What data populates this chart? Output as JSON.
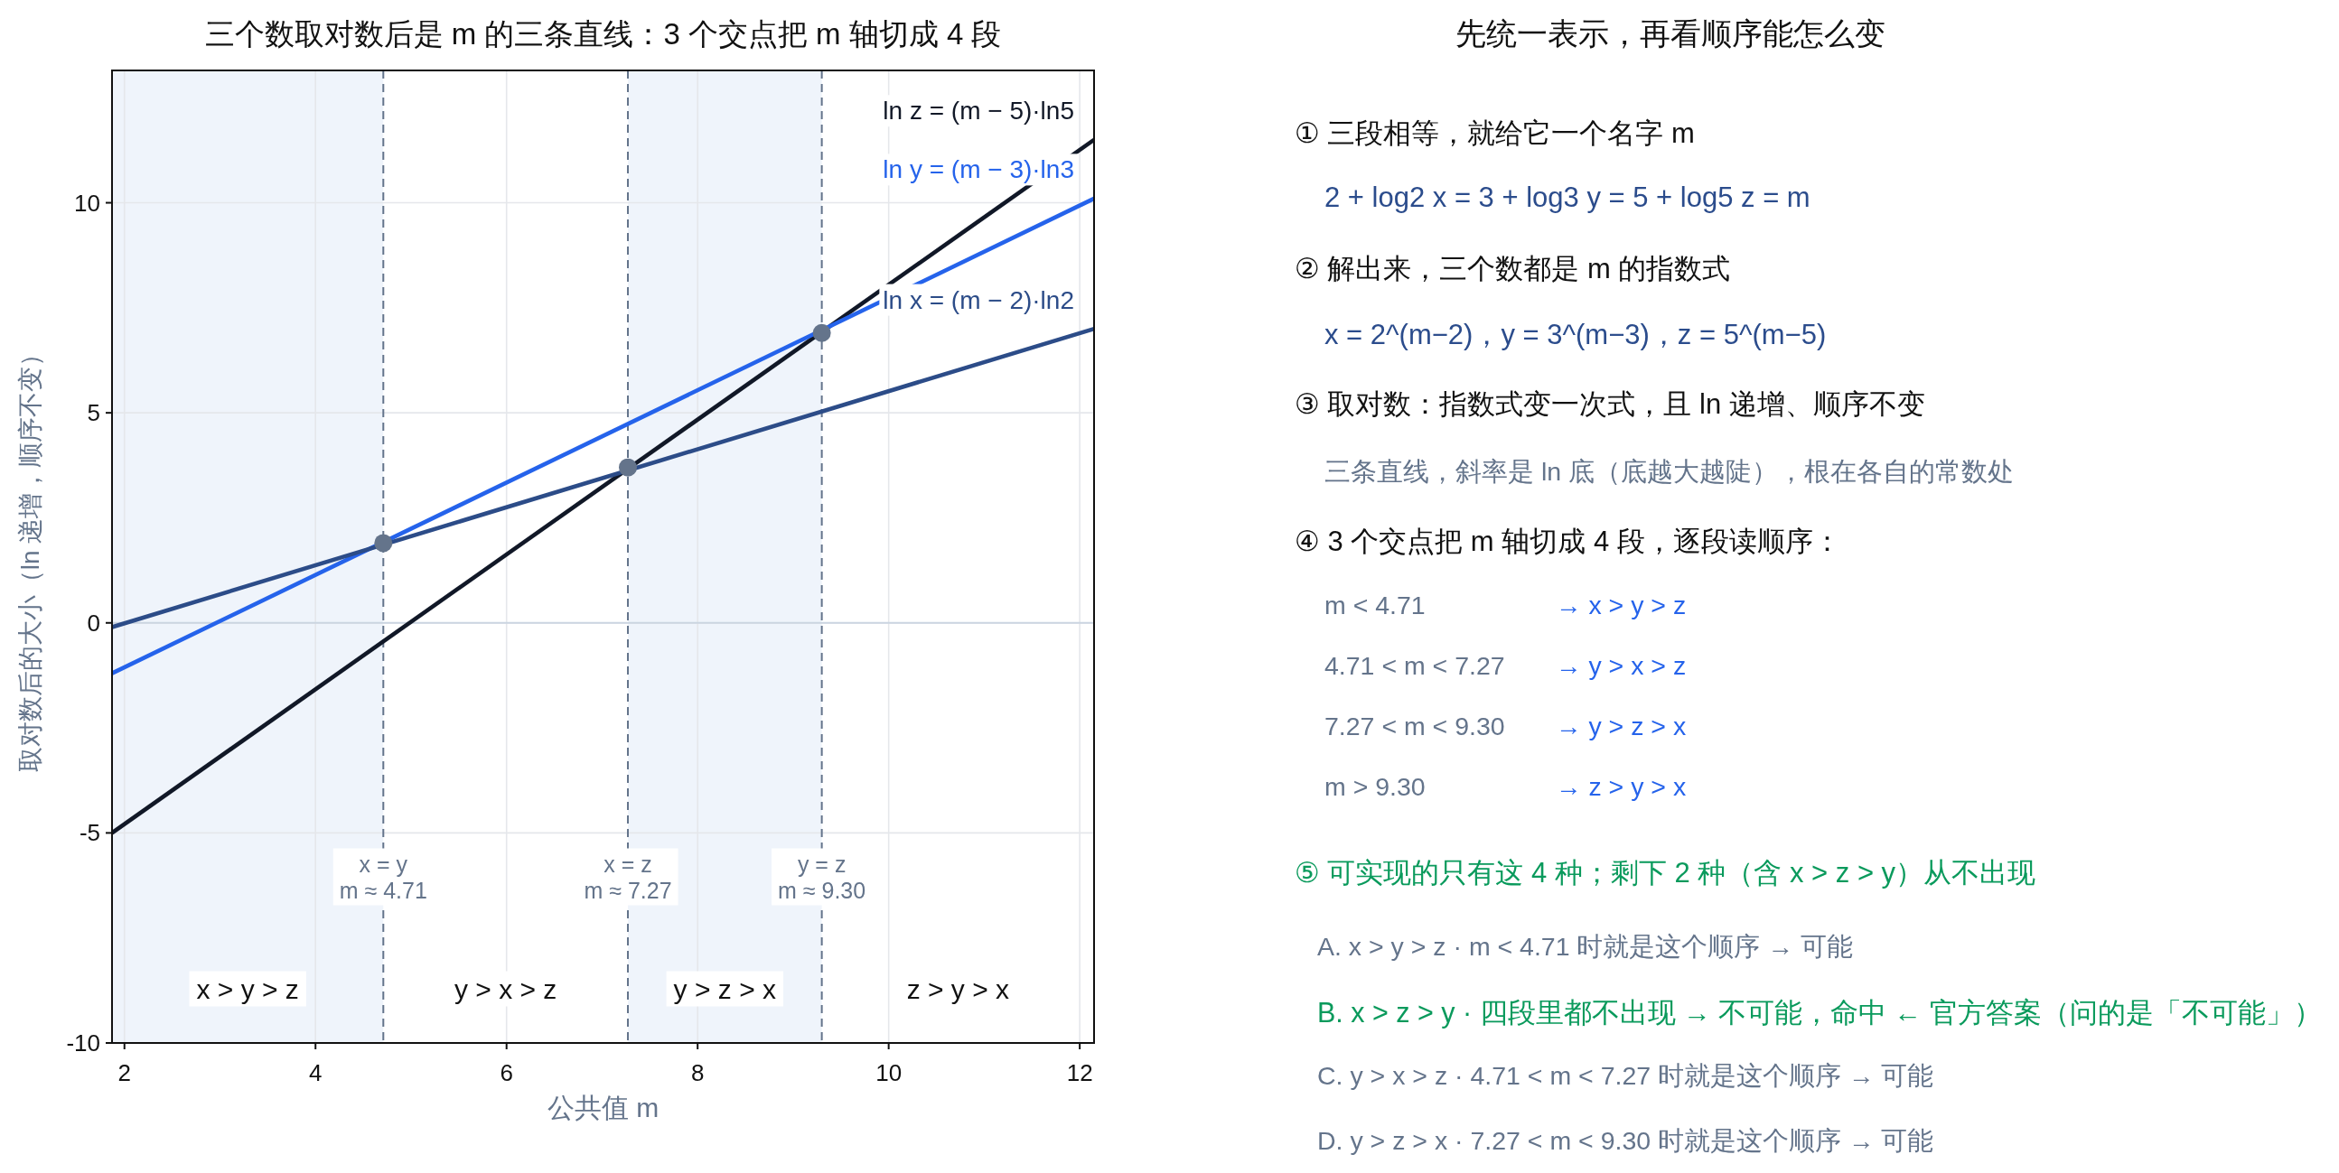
{
  "chart_data": [
    {
      "type": "line",
      "title": "三个数取对数后是 m 的三条直线：3 个交点把 m 轴切成 4 段",
      "xlabel": "公共值 m",
      "ylabel": "取对数后的大小（ln 递增，顺序不变）",
      "x": [
        1.87,
        12.15
      ],
      "series": [
        {
          "name": "ln z = (m − 5)·ln5",
          "color": "#111827",
          "values": [
            -5.0,
            11.5
          ]
        },
        {
          "name": "ln y = (m − 3)·ln3",
          "color": "#2563eb",
          "values": [
            -1.2,
            10.1
          ]
        },
        {
          "name": "ln x = (m − 2)·ln2",
          "color": "#2c4c88",
          "values": [
            -0.1,
            7.0
          ]
        },
        {
          "type": "scatter",
          "color": "#64748b",
          "marker": "circle",
          "x": [
            4.71,
            7.27,
            9.3
          ],
          "values": [
            1.9,
            3.7,
            6.9
          ]
        }
      ],
      "xlim": [
        1.87,
        12.15
      ],
      "ylim": [
        -10,
        13.15
      ],
      "xticks": [
        2,
        4,
        6,
        8,
        10,
        12
      ],
      "yticks": [
        -10,
        -5,
        0,
        5,
        10
      ],
      "grid": true,
      "bands": [
        {
          "axis": "x",
          "from": 1.87,
          "to": 4.71,
          "color": "#eff4fb"
        },
        {
          "axis": "x",
          "from": 7.27,
          "to": 9.3,
          "color": "#eff4fb"
        }
      ],
      "ref_lines": [
        {
          "axis": "y",
          "value": 0,
          "color": "#cbd5e1",
          "line_style": "solid"
        },
        {
          "axis": "x",
          "value": 4.71,
          "label": "x = y\nm ≈ 4.71",
          "color": "#64748b",
          "line_style": "dashed"
        },
        {
          "axis": "x",
          "value": 7.27,
          "label": "x = z\nm ≈ 7.27",
          "color": "#64748b",
          "line_style": "dashed"
        },
        {
          "axis": "x",
          "value": 9.3,
          "label": "y = z\nm ≈ 9.30",
          "color": "#64748b",
          "line_style": "dashed"
        }
      ],
      "annotations": [
        "x > y > z",
        "y > x > z",
        "y > z > x",
        "z > y > x"
      ]
    },
    {
      "type": "other",
      "title": "先统一表示，再看顺序能怎么变",
      "annotations": [
        "① 三段相等，就给它一个名字 m",
        "2 + log2 x = 3 + log3 y = 5 + log5 z = m",
        "② 解出来，三个数都是 m 的指数式",
        "x = 2^(m−2)，y = 3^(m−3)，z = 5^(m−5)",
        "③ 取对数：指数式变一次式，且 ln 递增、顺序不变",
        "三条直线，斜率是 ln 底（底越大越陡），根在各自的常数处",
        "④ 3 个交点把 m 轴切成 4 段，逐段读顺序：",
        "m < 4.71",
        "→ x > y > z",
        "4.71 < m < 7.27",
        "→ y > x > z",
        "7.27 < m < 9.30",
        "→ y > z > x",
        "m > 9.30",
        "→ z > y > x",
        "⑤ 可实现的只有这 4 种；剩下 2 种（含 x > z > y）从不出现",
        "A. x > y > z · m < 4.71 时就是这个顺序 → 可能",
        "B. x > z > y · 四段里都不出现 → 不可能，命中 ← 官方答案（问的是「不可能」）",
        "C. y > x > z · 4.71 < m < 7.27 时就是这个顺序 → 可能",
        "D. y > z > x · 7.27 < m < 9.30 时就是这个顺序 → 可能"
      ]
    }
  ]
}
